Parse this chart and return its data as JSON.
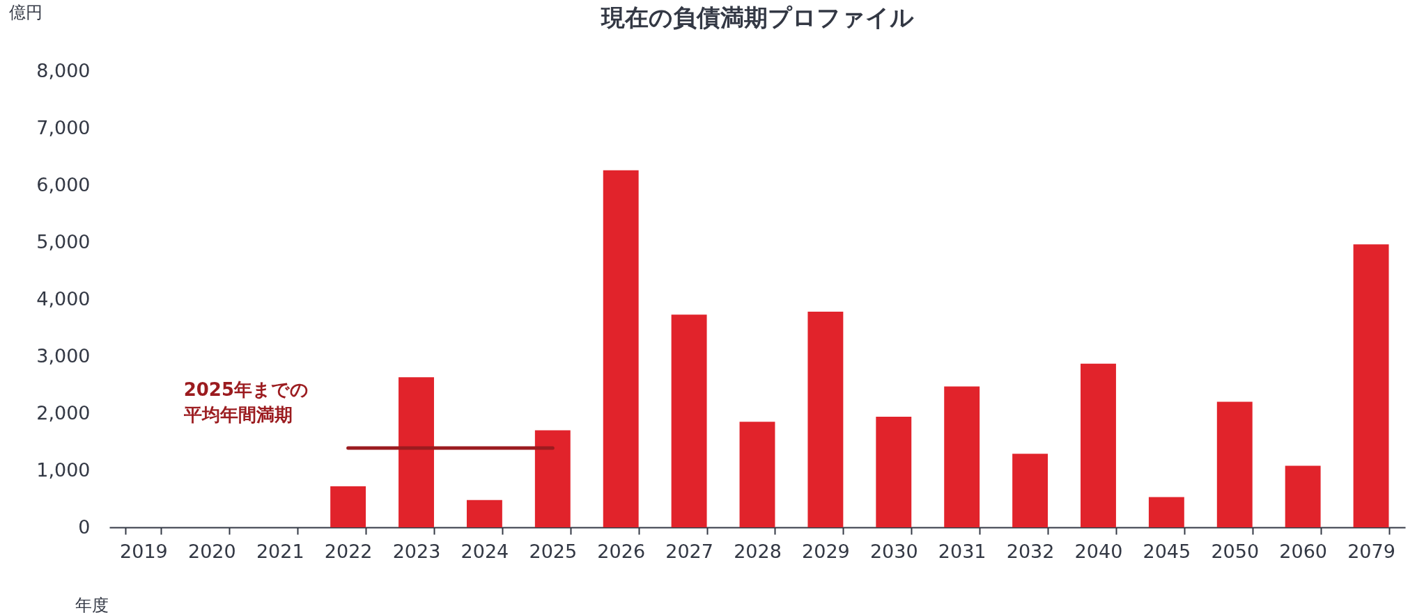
{
  "chart_data": {
    "type": "bar",
    "title": "現在の負債満期プロファイル",
    "xlabel": "年度",
    "ylabel": "億円",
    "categories": [
      "2019",
      "2020",
      "2021",
      "2022",
      "2023",
      "2024",
      "2025",
      "2026",
      "2027",
      "2028",
      "2029",
      "2030",
      "2031",
      "2032",
      "2040",
      "2045",
      "2050",
      "2060",
      "2079"
    ],
    "series": [
      {
        "color": "#e1232b",
        "values": [
          0,
          0,
          0,
          720,
          2630,
          480,
          1700,
          6260,
          3730,
          1850,
          3780,
          1940,
          2470,
          1290,
          2870,
          530,
          2200,
          1080,
          4960
        ]
      },
      {
        "type": "line",
        "color": "#9b1b1f",
        "values": [
          null,
          null,
          null,
          1390,
          1390,
          1390,
          1390,
          null,
          null,
          null,
          null,
          null,
          null,
          null,
          null,
          null,
          null,
          null,
          null
        ]
      }
    ],
    "ylim": [
      0,
      8000
    ],
    "yticks": [
      0,
      {
        "value": 1000,
        "label": "1,000"
      },
      {
        "value": 2000,
        "label": "2,000"
      },
      {
        "value": 3000,
        "label": "3,000"
      },
      {
        "value": 4000,
        "label": "4,000"
      },
      {
        "value": 5000,
        "label": "5,000"
      },
      {
        "value": 6000,
        "label": "6,000"
      },
      {
        "value": 7000,
        "label": "7,000"
      },
      {
        "value": 8000,
        "label": "8,000"
      }
    ],
    "annotations": [
      {
        "text": "2025年までの平均年間満期",
        "x": "2022",
        "y": 1390
      }
    ]
  }
}
